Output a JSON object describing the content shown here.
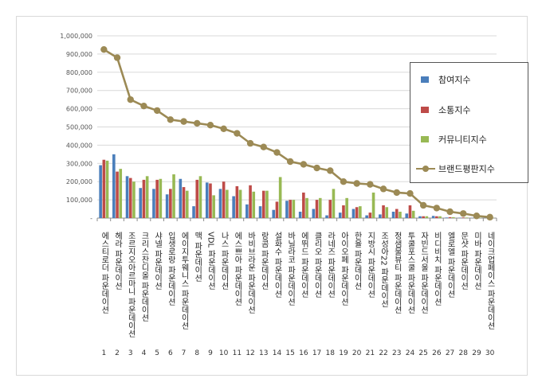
{
  "chart_data": {
    "type": "bar",
    "y_ticks": [
      "-",
      "100,000",
      "200,000",
      "300,000",
      "400,000",
      "500,000",
      "600,000",
      "700,000",
      "800,000",
      "900,000",
      "1,000,000"
    ],
    "ylim": [
      0,
      1000000
    ],
    "legend_position": "top-right",
    "grid": true,
    "categories": [
      "에스티로더 파운데이션",
      "헤라 파운데이션",
      "조르지오아르마니 파운데이션",
      "크리스찬디올 파운데이션",
      "샤넬 파운데이션",
      "입생로랑 파운데이션",
      "에이지투웨니스 파운데이션",
      "맥 파운데이션",
      "VDL 파운데이션",
      "나스 파운데이션",
      "에스쁘아 파운데이션",
      "바비브라운 파운데이션",
      "랑콤 파운데이션",
      "설화수 파운데이션",
      "바닐라코 파운데이션",
      "에뛰드 파운데이션",
      "클리오 파운데이션",
      "라네즈 파운데이션",
      "아이오페 파운데이션",
      "한율 파운데이션",
      "지방시 파운데이션",
      "조성아22 파운데이션",
      "정샘물뷰티 파운데이션",
      "투쿨포스쿨 파운데이션",
      "자빈드서울 파운데이션",
      "비디비치 파운데이션",
      "엘로엘 파운데이션",
      "문샷 파운데이션",
      "미바 파운데이션",
      "네이크업페이스 파운데이션"
    ],
    "x_numbers": [
      "1",
      "2",
      "3",
      "4",
      "5",
      "6",
      "7",
      "8",
      "9",
      "10",
      "11",
      "12",
      "13",
      "14",
      "15",
      "16",
      "17",
      "18",
      "19",
      "20",
      "21",
      "22",
      "23",
      "24",
      "25",
      "26",
      "27",
      "28",
      "29",
      "30"
    ],
    "series": [
      {
        "name": "참여지수",
        "color": "#4a7ebb",
        "kind": "bar",
        "values": [
          290000,
          350000,
          230000,
          165000,
          160000,
          130000,
          215000,
          65000,
          195000,
          160000,
          120000,
          75000,
          65000,
          45000,
          95000,
          35000,
          50000,
          15000,
          30000,
          50000,
          15000,
          20000,
          35000,
          25000,
          10000,
          12000,
          3000,
          2000,
          1000,
          1000
        ]
      },
      {
        "name": "소통지수",
        "color": "#be4b48",
        "kind": "bar",
        "values": [
          320000,
          255000,
          220000,
          210000,
          210000,
          160000,
          170000,
          210000,
          190000,
          200000,
          175000,
          180000,
          150000,
          90000,
          100000,
          140000,
          100000,
          100000,
          70000,
          60000,
          30000,
          70000,
          50000,
          70000,
          10000,
          10000,
          5000,
          3000,
          2000,
          1000
        ]
      },
      {
        "name": "커뮤니티지수",
        "color": "#98b954",
        "kind": "bar",
        "values": [
          315000,
          270000,
          200000,
          230000,
          215000,
          240000,
          150000,
          230000,
          125000,
          155000,
          155000,
          145000,
          150000,
          225000,
          100000,
          110000,
          110000,
          160000,
          110000,
          65000,
          140000,
          60000,
          35000,
          40000,
          10000,
          10000,
          5000,
          3000,
          2000,
          1000
        ]
      },
      {
        "name": "브랜드평판지수",
        "color": "#9c8a55",
        "kind": "line",
        "values": [
          925000,
          880000,
          650000,
          615000,
          590000,
          540000,
          530000,
          520000,
          510000,
          490000,
          465000,
          410000,
          390000,
          360000,
          310000,
          295000,
          275000,
          260000,
          200000,
          190000,
          185000,
          160000,
          140000,
          135000,
          70000,
          55000,
          35000,
          25000,
          12000,
          5000
        ]
      }
    ]
  }
}
